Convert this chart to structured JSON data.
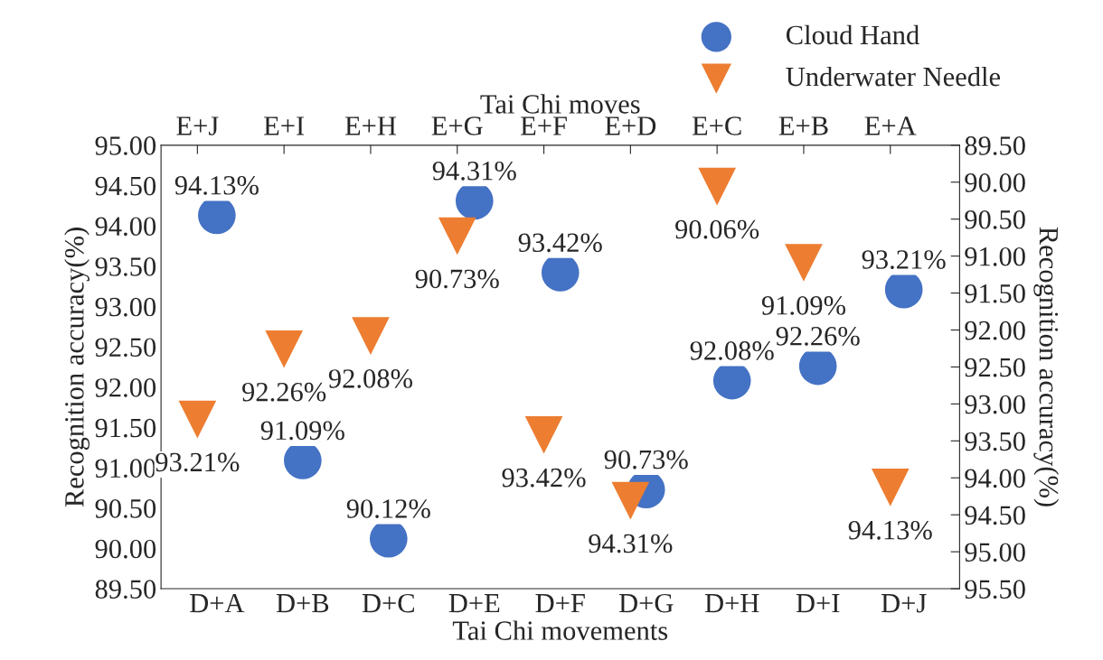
{
  "chart_data": [
    {
      "type": "scatter",
      "xlabel": "Tai Chi movements",
      "ylabel": "Recognition accuracy(%)",
      "categories": [
        "D+A",
        "D+B",
        "D+C",
        "D+E",
        "D+F",
        "D+G",
        "D+H",
        "D+I",
        "D+J"
      ],
      "series": [
        {
          "name": "Cloud Hand",
          "color": "#4472c4",
          "values": [
            94.13,
            91.09,
            90.12,
            94.31,
            93.42,
            90.73,
            92.08,
            92.26,
            93.21
          ],
          "value_labels": [
            "94.13%",
            "91.09%",
            "90.12%",
            "94.31%",
            "93.42%",
            "90.73%",
            "92.08%",
            "92.26%",
            "93.21%"
          ]
        }
      ],
      "marker": "circle",
      "ylim": [
        89.5,
        95.0
      ],
      "yticks": [
        {
          "value": 89.5,
          "label": "89.50"
        },
        {
          "value": 90.0,
          "label": "90.00"
        },
        {
          "value": 90.5,
          "label": "90.50"
        },
        {
          "value": 91.0,
          "label": "91.00"
        },
        {
          "value": 91.5,
          "label": "91.50"
        },
        {
          "value": 92.0,
          "label": "92.00"
        },
        {
          "value": 92.5,
          "label": "92.50"
        },
        {
          "value": 93.0,
          "label": "93.00"
        },
        {
          "value": 93.5,
          "label": "93.50"
        },
        {
          "value": 94.0,
          "label": "94.00"
        },
        {
          "value": 94.5,
          "label": "94.50"
        },
        {
          "value": 95.0,
          "label": "95.00"
        }
      ],
      "legend": "top right"
    },
    {
      "type": "scatter",
      "xlabel": "Tai Chi moves",
      "ylabel": "Recognition accuracy(%)",
      "categories": [
        "E+J",
        "E+I",
        "E+H",
        "E+G",
        "E+F",
        "E+D",
        "E+C",
        "E+B",
        "E+A"
      ],
      "series": [
        {
          "name": "Underwater Needle",
          "color": "#ed7d31",
          "values": [
            93.21,
            92.26,
            92.08,
            90.73,
            93.42,
            94.31,
            90.06,
            91.09,
            94.13
          ],
          "value_labels": [
            "93.21%",
            "92.26%",
            "92.08%",
            "90.73%",
            "93.42%",
            "94.31%",
            "90.06%",
            "91.09%",
            "94.13%"
          ]
        }
      ],
      "marker": "triangle",
      "ylim": [
        95.5,
        89.5
      ],
      "yticks": [
        {
          "value": 89.5,
          "label": "89.50"
        },
        {
          "value": 90.0,
          "label": "90.00"
        },
        {
          "value": 90.5,
          "label": "90.50"
        },
        {
          "value": 91.0,
          "label": "91.00"
        },
        {
          "value": 91.5,
          "label": "91.50"
        },
        {
          "value": 92.0,
          "label": "92.00"
        },
        {
          "value": 92.5,
          "label": "92.50"
        },
        {
          "value": 93.0,
          "label": "93.00"
        },
        {
          "value": 93.5,
          "label": "93.50"
        },
        {
          "value": 94.0,
          "label": "94.00"
        },
        {
          "value": 94.5,
          "label": "94.50"
        },
        {
          "value": 95.0,
          "label": "95.00"
        },
        {
          "value": 95.5,
          "label": "95.50"
        }
      ],
      "legend": "top right"
    }
  ]
}
